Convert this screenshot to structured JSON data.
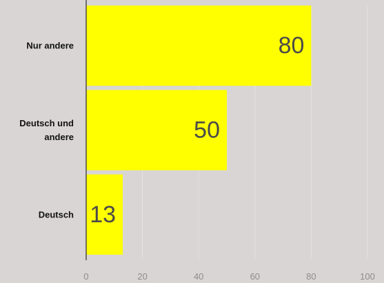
{
  "chart_data": {
    "type": "bar",
    "orientation": "horizontal",
    "categories": [
      [
        "Nur andere"
      ],
      [
        "Deutsch und",
        "andere"
      ],
      [
        "Deutsch"
      ]
    ],
    "values": [
      80,
      50,
      13
    ],
    "data_labels": [
      "80",
      "50",
      "13"
    ],
    "xlim": [
      0,
      100
    ],
    "xticks": [
      0,
      20,
      40,
      60,
      80,
      100
    ],
    "tick_labels": [
      "0",
      "20",
      "40",
      "60",
      "80",
      "100"
    ],
    "title": "",
    "xlabel": "",
    "ylabel": "",
    "grid": true,
    "legend": "none"
  },
  "colors": {
    "background": "#d9d5d4",
    "bar": "#ffff00",
    "grid": "#e6e2e1",
    "axis": "#4d4d4d",
    "value_text": "#4a4a4a",
    "category_text": "#111111",
    "tick_text": "#8f8b8a"
  }
}
